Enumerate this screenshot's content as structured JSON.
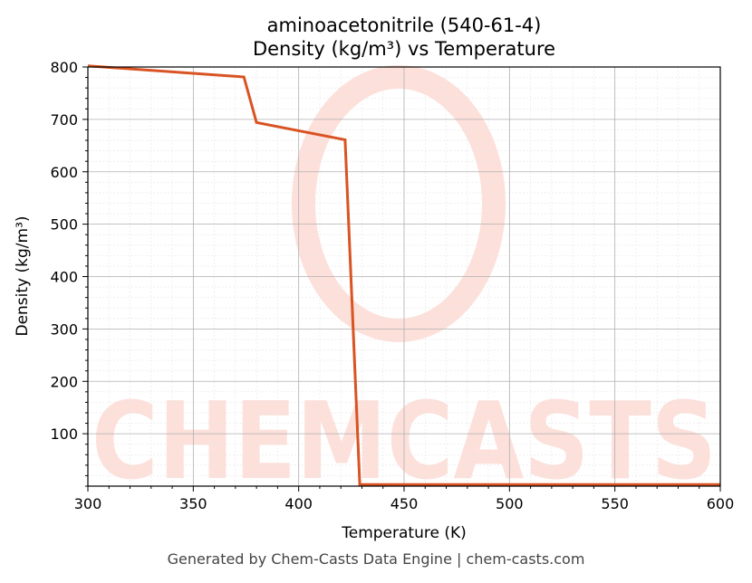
{
  "chart_data": {
    "type": "line",
    "title": "aminoacetonitrile (540-61-4)",
    "subtitle": "Density (kg/m³) vs Temperature",
    "xlabel": "Temperature (K)",
    "ylabel": "Density (kg/m³)",
    "xlim": [
      300,
      600
    ],
    "ylim": [
      0,
      800
    ],
    "x_ticks": [
      300,
      350,
      400,
      450,
      500,
      550,
      600
    ],
    "y_ticks": [
      100,
      200,
      300,
      400,
      500,
      600,
      700,
      800
    ],
    "grid": true,
    "series": [
      {
        "color": "#d95323",
        "x": [
          300,
          374,
          380,
          422,
          429,
          600
        ],
        "y": [
          802,
          781,
          694,
          661,
          3,
          3
        ]
      }
    ]
  },
  "watermark": {
    "text": "CHEMCASTS",
    "color": "#fde0da"
  },
  "footer": "Generated by Chem-Casts Data Engine | chem-casts.com"
}
